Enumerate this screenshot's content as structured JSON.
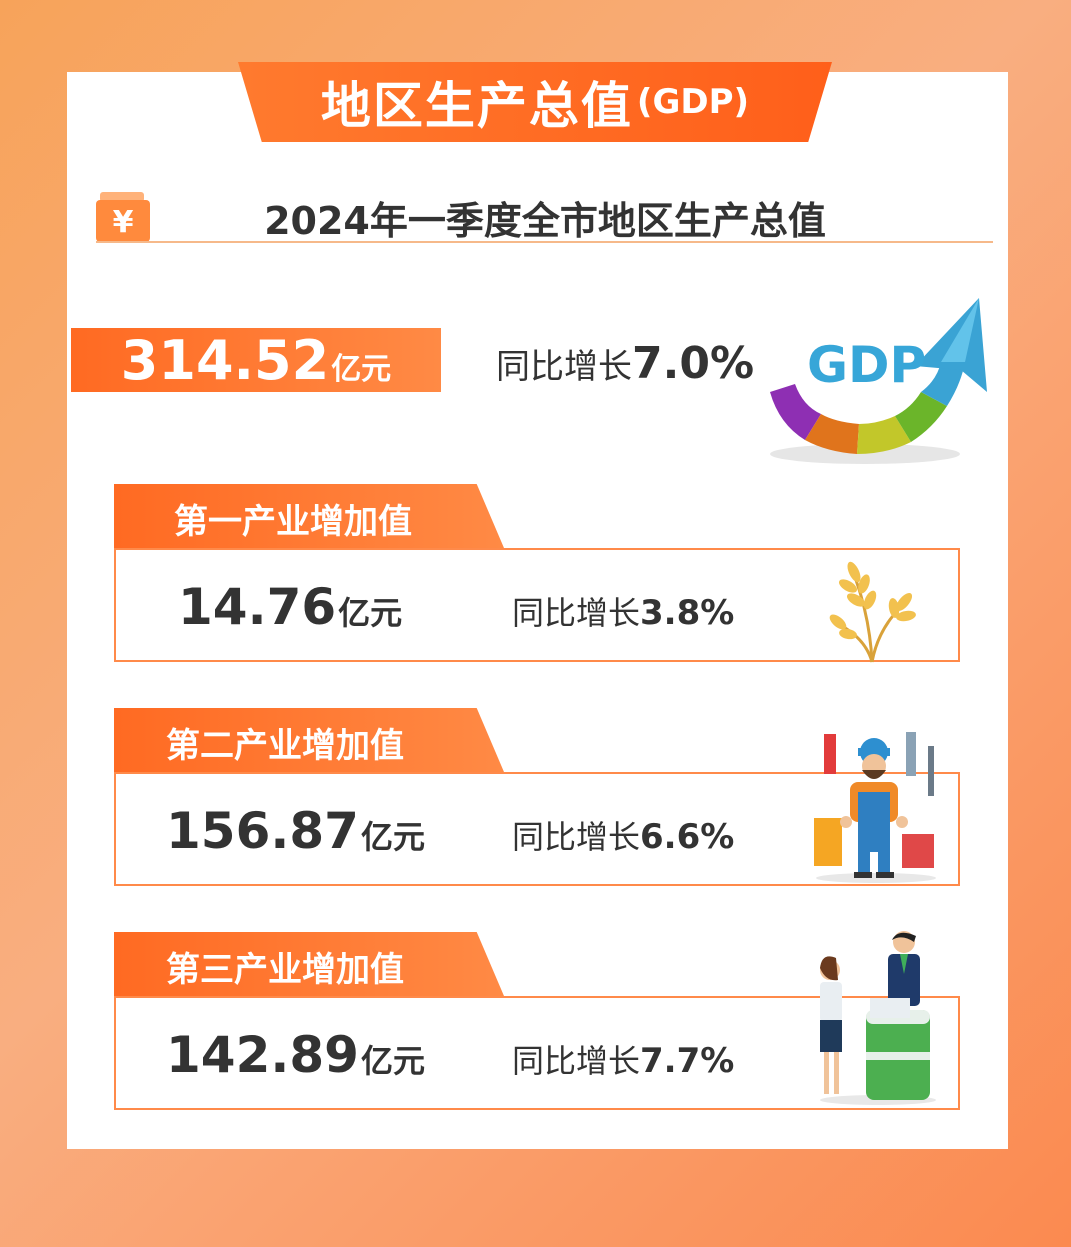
{
  "banner": {
    "title": "地区生产总值",
    "subtitle": "(GDP)"
  },
  "headline": "2024年一季度全市地区生产总值",
  "total": {
    "value": "314.52",
    "unit": "亿元",
    "growth_label": "同比增长",
    "growth_value": "7.0%"
  },
  "gdp_icon_text": "GDP",
  "industries": [
    {
      "title": "第一产业增加值",
      "value": "14.76",
      "unit": "亿元",
      "growth_label": "同比增长",
      "growth_value": "3.8%",
      "icon": "wheat-icon"
    },
    {
      "title": "第二产业增加值",
      "value": "156.87",
      "unit": "亿元",
      "growth_label": "同比增长",
      "growth_value": "6.6%",
      "icon": "worker-icon"
    },
    {
      "title": "第三产业增加值",
      "value": "142.89",
      "unit": "亿元",
      "growth_label": "同比增长",
      "growth_value": "7.7%",
      "icon": "service-icon"
    }
  ],
  "colors": {
    "accent": "#ff6a22",
    "text": "#333333",
    "border": "#ff8a4a"
  }
}
